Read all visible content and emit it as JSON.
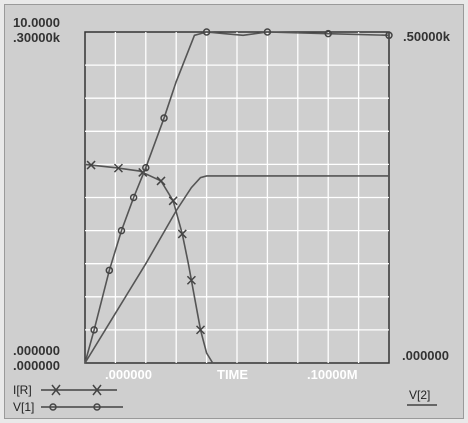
{
  "chart_data": {
    "type": "line",
    "title": "",
    "xlabel": "TIME",
    "x_tick_labels": {
      "start": ".000000",
      "end": ".10000M"
    },
    "xlim": [
      0,
      10
    ],
    "grid": true,
    "left_axis": {
      "top_labels": [
        "10.0000",
        ".30000k"
      ],
      "bottom_labels": [
        ".000000",
        ".000000"
      ]
    },
    "right_axis": {
      "top_label": ".50000k",
      "bottom_label": ".000000"
    },
    "ylim": [
      0,
      10
    ],
    "legend_right": "V[2]",
    "series": [
      {
        "name": "I[R]",
        "marker": "x",
        "color": "#555555",
        "x": [
          0,
          1.0,
          1.8,
          2.5,
          2.9,
          3.2,
          3.4,
          3.6,
          3.8,
          4.0,
          4.2
        ],
        "y": [
          6.0,
          5.9,
          5.8,
          5.5,
          4.9,
          3.9,
          3.0,
          2.0,
          1.0,
          0.3,
          0.0
        ],
        "marker_x": [
          0.2,
          1.1,
          1.9,
          2.5,
          2.9,
          3.2,
          3.5,
          3.8
        ]
      },
      {
        "name": "V[1]",
        "marker": "o",
        "color": "#555555",
        "x": [
          0,
          0.3,
          0.8,
          1.2,
          1.6,
          2.0,
          2.6,
          3.0,
          3.6,
          4.0,
          4.6,
          5.2,
          6.0,
          8.0,
          10.0
        ],
        "y": [
          0,
          1.0,
          2.8,
          4.0,
          5.0,
          5.9,
          7.4,
          8.5,
          9.9,
          10.0,
          9.95,
          9.9,
          10.0,
          9.95,
          9.9
        ],
        "marker_x": [
          0.3,
          0.8,
          1.2,
          1.6,
          2.0,
          2.6,
          4.0,
          6.0,
          8.0,
          10.0
        ]
      },
      {
        "name": "V[2]",
        "marker": "none",
        "color": "#555555",
        "x": [
          0,
          1,
          2,
          3,
          3.5,
          3.8,
          4.0,
          5,
          6,
          7,
          8,
          9,
          10
        ],
        "y": [
          0,
          1.5,
          3.0,
          4.6,
          5.3,
          5.6,
          5.65,
          5.65,
          5.65,
          5.65,
          5.65,
          5.65,
          5.65
        ]
      }
    ]
  }
}
